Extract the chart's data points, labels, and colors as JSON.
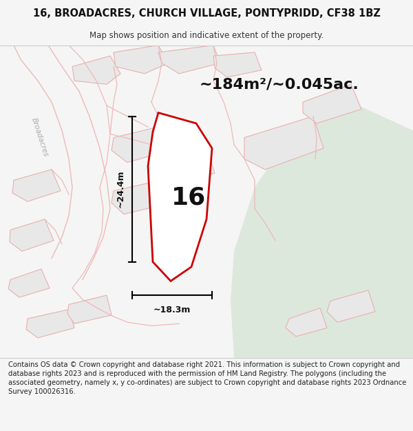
{
  "title": "16, BROADACRES, CHURCH VILLAGE, PONTYPRIDD, CF38 1BZ",
  "subtitle": "Map shows position and indicative extent of the property.",
  "footer": "Contains OS data © Crown copyright and database right 2021. This information is subject to Crown copyright and database rights 2023 and is reproduced with the permission of HM Land Registry. The polygons (including the associated geometry, namely x, y co-ordinates) are subject to Crown copyright and database rights 2023 Ordnance Survey 100026316.",
  "area_label": "~184m²/~0.045ac.",
  "width_label": "~18.3m",
  "height_label": "~24.4m",
  "plot_number": "16",
  "bg_color": "#f5f5f5",
  "map_bg": "#ffffff",
  "green_area_color": "#dce8dc",
  "building_fill": "#e8e8e8",
  "building_stroke": "#e8b0b0",
  "road_stroke": "#f0b8b8",
  "main_polygon_color": "#cc0000",
  "road_label_color": "#aaaaaa",
  "dimension_color": "#000000",
  "title_fontsize": 10.5,
  "subtitle_fontsize": 8.5,
  "footer_fontsize": 7.2,
  "area_fontsize": 16,
  "number_fontsize": 26
}
